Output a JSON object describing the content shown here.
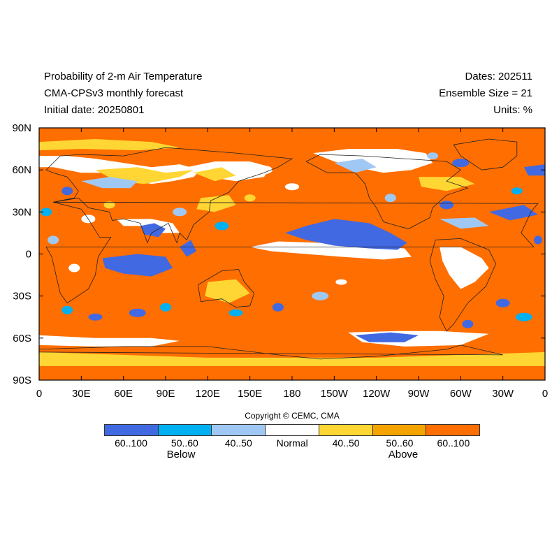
{
  "header": {
    "title_line1": "Probability of 2-m Air Temperature",
    "title_line2": "CMA-CPSv3 monthly forecast",
    "title_line3": "Initial date: 20250801",
    "dates": "Dates: 202511",
    "ensemble": "Ensemble Size = 21",
    "units": "Units: %"
  },
  "map": {
    "lat_labels": [
      "90N",
      "60N",
      "30N",
      "0",
      "30S",
      "60S",
      "90S"
    ],
    "lat_values": [
      90,
      60,
      30,
      0,
      -30,
      -60,
      -90
    ],
    "lon_labels": [
      "0",
      "30E",
      "60E",
      "90E",
      "120E",
      "150E",
      "180",
      "150W",
      "120W",
      "90W",
      "60W",
      "30W",
      "0"
    ],
    "lon_values": [
      0,
      30,
      60,
      90,
      120,
      150,
      180,
      210,
      240,
      270,
      300,
      330,
      360
    ],
    "projection": "cylindrical equidistant",
    "background_category": "Above 60..100"
  },
  "copyright": "Copyright © CEMC, CMA",
  "legend": {
    "segments": [
      {
        "label": "60..100",
        "color": "#4169e1"
      },
      {
        "label": "50..60",
        "color": "#00b0f0"
      },
      {
        "label": "40..50",
        "color": "#a0c8f4"
      },
      {
        "label": "Normal",
        "color": "#ffffff"
      },
      {
        "label": "40..50",
        "color": "#ffd633"
      },
      {
        "label": "50..60",
        "color": "#f5a300"
      },
      {
        "label": "60..100",
        "color": "#ff6e00"
      }
    ],
    "below_label": "Below",
    "above_label": "Above"
  }
}
